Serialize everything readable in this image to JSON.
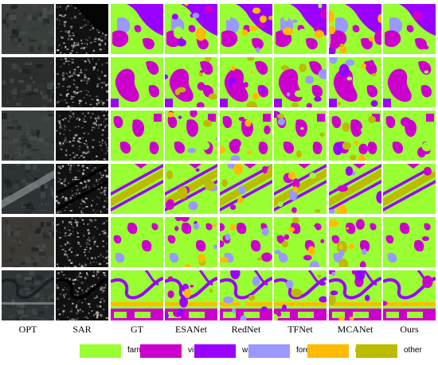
{
  "columns": [
    "OPT",
    "SAR",
    "GT",
    "ESANet",
    "RedNet",
    "TFNet",
    "MCANet",
    "Ours"
  ],
  "legend": [
    {
      "label": "farmland",
      "color": "#99ff33"
    },
    {
      "label": "village",
      "color": "#cc00cc"
    },
    {
      "label": "water",
      "color": "#9900ff"
    },
    {
      "label": "forest",
      "color": "#9999ff"
    },
    {
      "label": "road",
      "color": "#ffbb00"
    },
    {
      "label": "other",
      "color": "#bbbb00"
    }
  ],
  "rows": [
    {
      "scene": "river-bend"
    },
    {
      "scene": "village-clusters"
    },
    {
      "scene": "scattered-villages"
    },
    {
      "scene": "diagonal-road"
    },
    {
      "scene": "sparse-villages"
    },
    {
      "scene": "meandering-river"
    }
  ]
}
